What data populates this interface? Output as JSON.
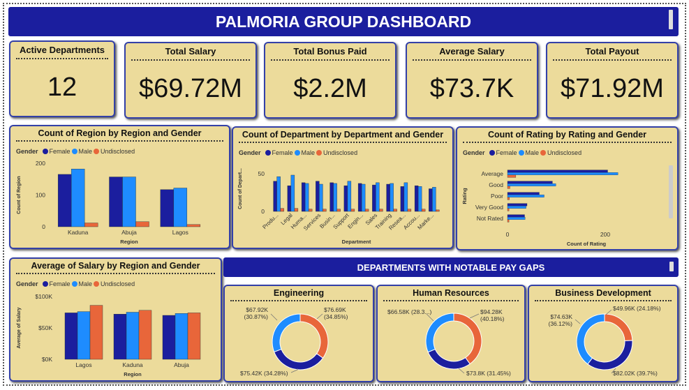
{
  "dashboard": {
    "title": "PALMORIA GROUP DASHBOARD",
    "section_title": "DEPARTMENTS WITH NOTABLE PAY GAPS"
  },
  "kpis": [
    {
      "label": "Active Departments",
      "value": "12"
    },
    {
      "label": "Total Salary",
      "value": "$69.72M"
    },
    {
      "label": "Total Bonus Paid",
      "value": "$2.2M"
    },
    {
      "label": "Average Salary",
      "value": "$73.7K"
    },
    {
      "label": "Total Payout",
      "value": "$71.92M"
    }
  ],
  "colors": {
    "female": "#1b1e9e",
    "male": "#1e8cff",
    "undisclosed": "#e8663a"
  },
  "legend": {
    "title": "Gender",
    "female": "Female",
    "male": "Male",
    "undisclosed": "Undisclosed"
  },
  "chart_data": [
    {
      "type": "bar",
      "title": "Count of Region by Region and Gender",
      "xlabel": "Region",
      "ylabel": "Count of Region",
      "categories": [
        "Kaduna",
        "Abuja",
        "Lagos"
      ],
      "ylim": [
        0,
        200
      ],
      "yticks": [
        "0",
        "100",
        "200"
      ],
      "series": [
        {
          "name": "Female",
          "values": [
            165,
            157,
            117
          ]
        },
        {
          "name": "Male",
          "values": [
            182,
            157,
            122
          ]
        },
        {
          "name": "Undisclosed",
          "values": [
            12,
            16,
            7
          ]
        }
      ]
    },
    {
      "type": "bar",
      "title": "Count of Department by Department and Gender",
      "xlabel": "Department",
      "ylabel": "Count of Depart...",
      "categories": [
        "Produ...",
        "Legal",
        "Huma...",
        "Services",
        "Busin...",
        "Support",
        "Engin...",
        "Sales",
        "Training",
        "Resea...",
        "Accou...",
        "Marke..."
      ],
      "ylim": [
        0,
        60
      ],
      "yticks": [
        "0",
        "50"
      ],
      "series": [
        {
          "name": "Female",
          "values": [
            40,
            34,
            38,
            40,
            38,
            34,
            37,
            35,
            36,
            33,
            34,
            30
          ]
        },
        {
          "name": "Male",
          "values": [
            46,
            48,
            37,
            36,
            37,
            40,
            36,
            38,
            37,
            38,
            33,
            32
          ]
        },
        {
          "name": "Undisclosed",
          "values": [
            4,
            4,
            3,
            3,
            3,
            3,
            3,
            3,
            3,
            3,
            3,
            2
          ]
        }
      ]
    },
    {
      "type": "bar",
      "orientation": "horizontal",
      "title": "Count of Rating by Rating and Gender",
      "xlabel": "Count of Rating",
      "ylabel": "Rating",
      "categories": [
        "Average",
        "Good",
        "Poor",
        "Very Good",
        "Not Rated"
      ],
      "xlim": [
        0,
        300
      ],
      "xticks": [
        "0",
        "200"
      ],
      "series": [
        {
          "name": "Female",
          "values": [
            205,
            92,
            65,
            40,
            35
          ]
        },
        {
          "name": "Male",
          "values": [
            226,
            99,
            75,
            38,
            36
          ]
        },
        {
          "name": "Undisclosed",
          "values": [
            17,
            5,
            4,
            3,
            3
          ]
        }
      ]
    },
    {
      "type": "bar",
      "title": "Average of Salary by Region and Gender",
      "xlabel": "Region",
      "ylabel": "Average of Salary",
      "categories": [
        "Lagos",
        "Kaduna",
        "Abuja"
      ],
      "ylim": [
        0,
        100000
      ],
      "yticks": [
        "$0K",
        "$50K",
        "$100K"
      ],
      "series": [
        {
          "name": "Female",
          "values": [
            74000,
            72000,
            70000
          ]
        },
        {
          "name": "Male",
          "values": [
            76000,
            75000,
            73000
          ]
        },
        {
          "name": "Undisclosed",
          "values": [
            86000,
            78000,
            74000
          ]
        }
      ]
    },
    {
      "type": "pie",
      "title": "Engineering",
      "slices": [
        {
          "name": "Female",
          "value": 75.42,
          "label": "$75.42K (34.28%)"
        },
        {
          "name": "Male",
          "value": 67.92,
          "label": "$67.92K (30.87%)"
        },
        {
          "name": "Undisclosed",
          "value": 76.69,
          "label": "$76.69K (34.85%)"
        }
      ]
    },
    {
      "type": "pie",
      "title": "Human Resources",
      "slices": [
        {
          "name": "Female",
          "value": 66.58,
          "label": "$66.58K (28.3...)"
        },
        {
          "name": "Male",
          "value": 73.8,
          "label": "$73.8K (31.45%)"
        },
        {
          "name": "Undisclosed",
          "value": 94.28,
          "label": "$94.28K (40.18%)"
        }
      ]
    },
    {
      "type": "pie",
      "title": "Business Development",
      "slices": [
        {
          "name": "Female",
          "value": 74.63,
          "label": "$74.63K (36.12%)"
        },
        {
          "name": "Male",
          "value": 82.02,
          "label": "$82.02K (39.7%)"
        },
        {
          "name": "Undisclosed",
          "value": 49.96,
          "label": "$49.96K (24.18%)"
        }
      ]
    }
  ]
}
